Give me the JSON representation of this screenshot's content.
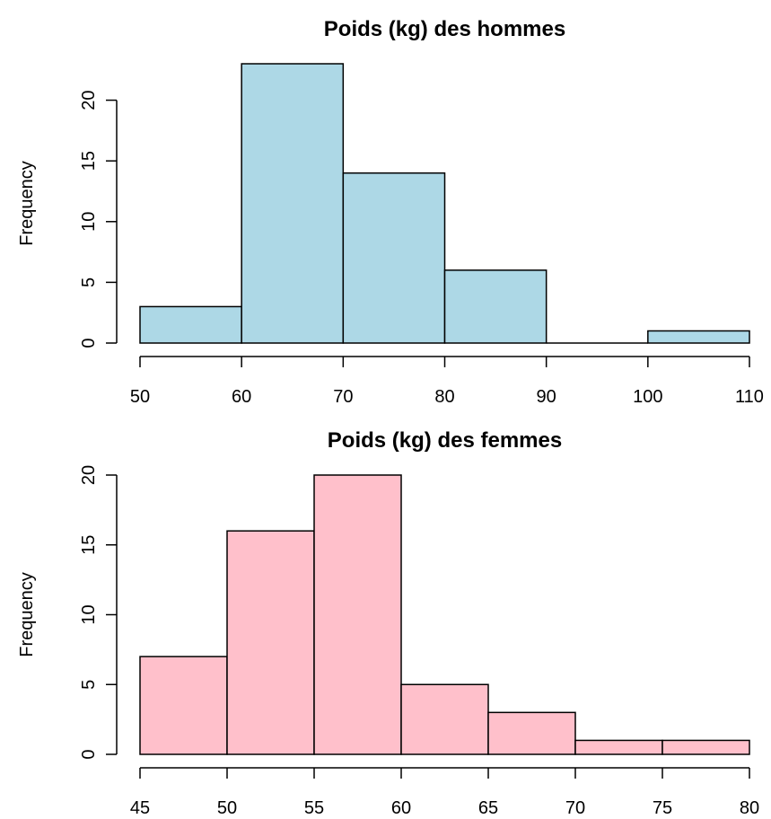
{
  "chart_data": [
    {
      "type": "bar",
      "title": "Poids (kg) des hommes",
      "xlabel": "",
      "ylabel": "Frequency",
      "bins": [
        [
          50,
          60
        ],
        [
          60,
          70
        ],
        [
          70,
          80
        ],
        [
          80,
          90
        ],
        [
          90,
          100
        ],
        [
          100,
          110
        ]
      ],
      "values": [
        3,
        23,
        14,
        6,
        0,
        1
      ],
      "xlim": [
        50,
        110
      ],
      "ylim": [
        0,
        23
      ],
      "x_ticks": [
        50,
        60,
        70,
        80,
        90,
        100,
        110
      ],
      "y_ticks": [
        0,
        5,
        10,
        15,
        20
      ],
      "bar_color": "#add8e6",
      "grid": false
    },
    {
      "type": "bar",
      "title": "Poids (kg) des femmes",
      "xlabel": "",
      "ylabel": "Frequency",
      "bins": [
        [
          45,
          50
        ],
        [
          50,
          55
        ],
        [
          55,
          60
        ],
        [
          60,
          65
        ],
        [
          65,
          70
        ],
        [
          70,
          75
        ],
        [
          75,
          80
        ]
      ],
      "values": [
        7,
        16,
        20,
        5,
        3,
        1,
        1
      ],
      "xlim": [
        45,
        80
      ],
      "ylim": [
        0,
        20
      ],
      "x_ticks": [
        45,
        50,
        55,
        60,
        65,
        70,
        75,
        80
      ],
      "y_ticks": [
        0,
        5,
        10,
        15,
        20
      ],
      "bar_color": "#ffc0cb",
      "grid": false
    }
  ]
}
